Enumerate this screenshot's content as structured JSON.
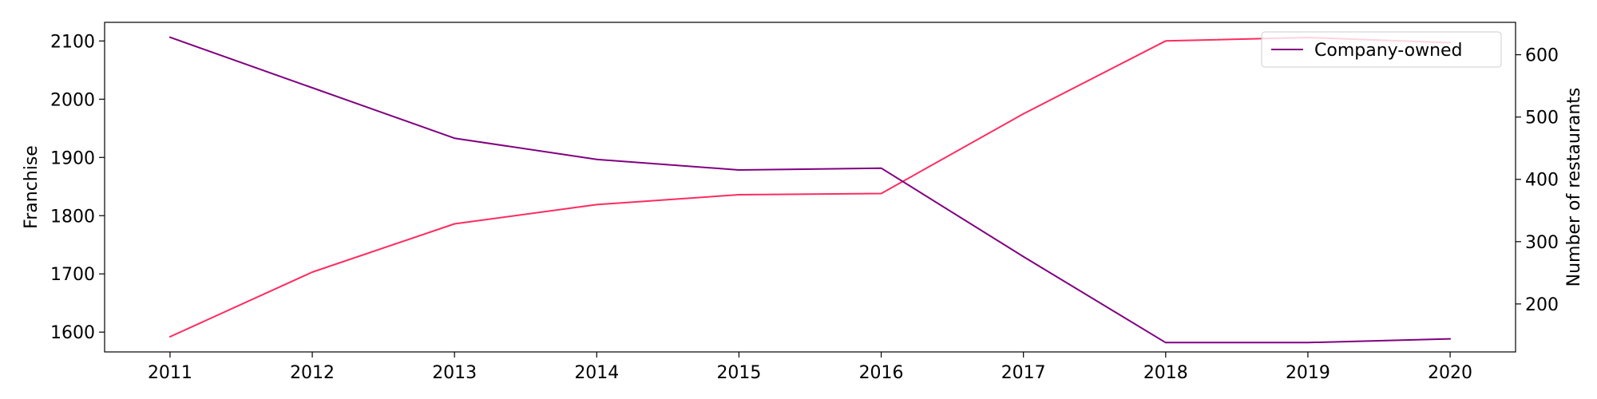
{
  "chart_data": {
    "type": "line",
    "x": [
      2011,
      2012,
      2013,
      2014,
      2015,
      2016,
      2017,
      2018,
      2019,
      2020
    ],
    "series": [
      {
        "name": "",
        "axis": "left",
        "color": "#ff2b5e",
        "values": [
          1592,
          1703,
          1786,
          1819,
          1836,
          1838,
          1975,
          2100,
          2106,
          2097
        ]
      },
      {
        "name": "Company-owned",
        "axis": "right",
        "color": "#800080",
        "values": [
          628,
          547,
          466,
          432,
          415,
          418,
          276,
          138,
          138,
          144
        ]
      }
    ],
    "xlabel": "",
    "ylabel_left": "Franchise",
    "ylabel_right": "Number of restaurants",
    "xlim": [
      2010.54,
      2020.46
    ],
    "ylim_left": [
      1566,
      2132
    ],
    "ylim_right": [
      123,
      652
    ],
    "xticks": [
      2011,
      2012,
      2013,
      2014,
      2015,
      2016,
      2017,
      2018,
      2019,
      2020
    ],
    "yticks_left": [
      1600,
      1700,
      1800,
      1900,
      2000,
      2100
    ],
    "yticks_right": [
      200,
      300,
      400,
      500,
      600
    ],
    "legend": {
      "position": "top-right",
      "entries": [
        "Company-owned"
      ]
    },
    "grid": false
  }
}
